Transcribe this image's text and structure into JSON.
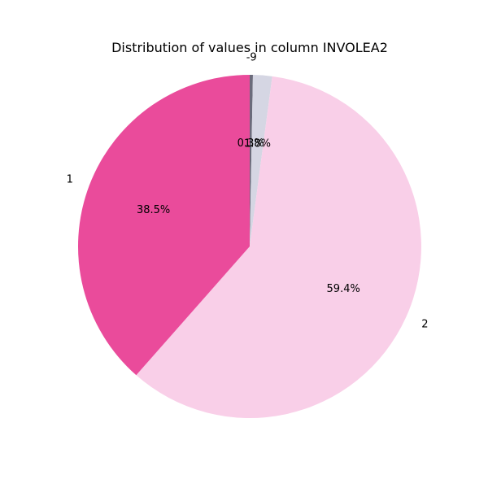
{
  "chart_data": {
    "type": "pie",
    "title": "Distribution of values in column INVOLEA2",
    "start_angle_deg": 90,
    "direction": "clockwise",
    "slices": [
      {
        "label": "-9",
        "value": 0.3,
        "pct_label": "0.3%",
        "color": "#6b6b7b"
      },
      {
        "label": "",
        "value": 1.8,
        "pct_label": "1.8%",
        "color": "#d5d6e3"
      },
      {
        "label": "2",
        "value": 59.4,
        "pct_label": "59.4%",
        "color": "#f9cfe8"
      },
      {
        "label": "1",
        "value": 38.5,
        "pct_label": "38.5%",
        "color": "#ea4b9b"
      }
    ]
  }
}
